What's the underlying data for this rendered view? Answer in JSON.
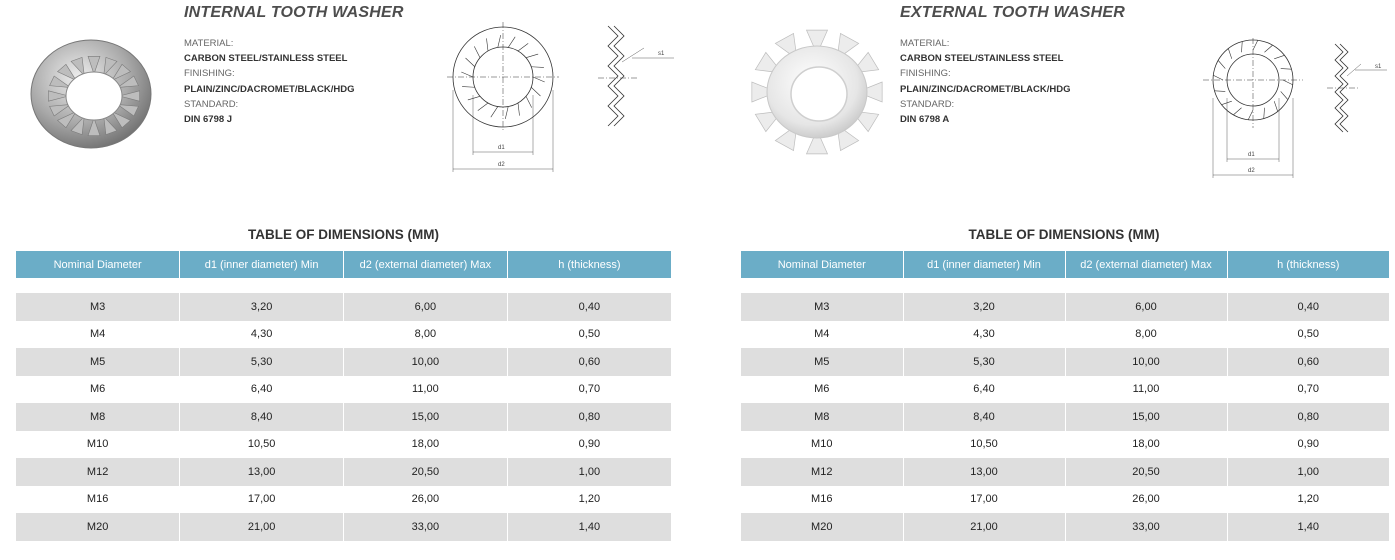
{
  "products": [
    {
      "title": "INTERNAL TOOTH WASHER",
      "specs": [
        {
          "label": "MATERIAL:",
          "value": "CARBON STEEL/STAINLESS STEEL"
        },
        {
          "label": "FINISHING:",
          "value": "PLAIN/ZINC/DACROMET/BLACK/HDG"
        },
        {
          "label": "STANDARD:",
          "value": "DIN 6798 J"
        }
      ],
      "drawing_labels": {
        "d1": "d1",
        "d2": "d2",
        "s1": "s1"
      },
      "table_title": "TABLE OF DIMENSIONS (MM)",
      "headers": [
        "Nominal Diameter",
        "d1 (inner diameter) Min",
        "d2 (external diameter) Max",
        "h (thickness)"
      ],
      "rows": [
        [
          "M3",
          "3,20",
          "6,00",
          "0,40"
        ],
        [
          "M4",
          "4,30",
          "8,00",
          "0,50"
        ],
        [
          "M5",
          "5,30",
          "10,00",
          "0,60"
        ],
        [
          "M6",
          "6,40",
          "11,00",
          "0,70"
        ],
        [
          "M8",
          "8,40",
          "15,00",
          "0,80"
        ],
        [
          "M10",
          "10,50",
          "18,00",
          "0,90"
        ],
        [
          "M12",
          "13,00",
          "20,50",
          "1,00"
        ],
        [
          "M16",
          "17,00",
          "26,00",
          "1,20"
        ],
        [
          "M20",
          "21,00",
          "33,00",
          "1,40"
        ]
      ]
    },
    {
      "title": "EXTERNAL TOOTH WASHER",
      "specs": [
        {
          "label": "MATERIAL:",
          "value": "CARBON STEEL/STAINLESS STEEL"
        },
        {
          "label": "FINISHING:",
          "value": "PLAIN/ZINC/DACROMET/BLACK/HDG"
        },
        {
          "label": "STANDARD:",
          "value": "DIN 6798 A"
        }
      ],
      "drawing_labels": {
        "d1": "d1",
        "d2": "d2",
        "s1": "s1"
      },
      "table_title": "TABLE OF DIMENSIONS (MM)",
      "headers": [
        "Nominal Diameter",
        "d1 (inner diameter) Min",
        "d2 (external diameter) Max",
        "h (thickness)"
      ],
      "rows": [
        [
          "M3",
          "3,20",
          "6,00",
          "0,40"
        ],
        [
          "M4",
          "4,30",
          "8,00",
          "0,50"
        ],
        [
          "M5",
          "5,30",
          "10,00",
          "0,60"
        ],
        [
          "M6",
          "6,40",
          "11,00",
          "0,70"
        ],
        [
          "M8",
          "8,40",
          "15,00",
          "0,80"
        ],
        [
          "M10",
          "10,50",
          "18,00",
          "0,90"
        ],
        [
          "M12",
          "13,00",
          "20,50",
          "1,00"
        ],
        [
          "M16",
          "17,00",
          "26,00",
          "1,20"
        ],
        [
          "M20",
          "21,00",
          "33,00",
          "1,40"
        ]
      ]
    }
  ],
  "colors": {
    "header_bg": "#6badc7",
    "stripe": "#dedede"
  }
}
